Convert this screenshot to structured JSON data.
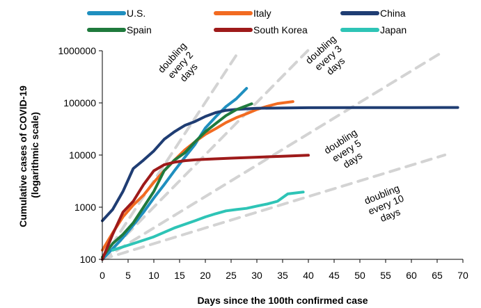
{
  "chart_data": {
    "type": "line",
    "xlabel": "Days since the 100th confirmed case",
    "ylabel_lines": [
      "Cumulative cases of COVID-19",
      "(logarithmic scale)"
    ],
    "y_scale": "log",
    "xlim": [
      0,
      70
    ],
    "ylim": [
      100,
      1000000
    ],
    "x_ticks": [
      0,
      5,
      10,
      15,
      20,
      25,
      30,
      35,
      40,
      45,
      50,
      55,
      60,
      65,
      70
    ],
    "x_tick_labels": [
      "0",
      "5",
      "10",
      "15",
      "20",
      "25",
      "30",
      "35",
      "40",
      "45",
      "50",
      "55",
      "60",
      "65",
      "70"
    ],
    "y_ticks": [
      100,
      1000,
      10000,
      100000,
      1000000
    ],
    "y_tick_labels": [
      "100",
      "1000",
      "10000",
      "100000",
      "1000000"
    ],
    "grid": false,
    "legend_position": "top",
    "series": [
      {
        "name": "U.S.",
        "color": "#1f8fbf",
        "x": [
          0,
          2,
          4,
          6,
          8,
          10,
          12,
          14,
          16,
          18,
          20,
          22,
          24,
          26,
          28
        ],
        "y": [
          100,
          160,
          260,
          450,
          800,
          1500,
          2700,
          5000,
          9000,
          16000,
          33000,
          54000,
          85000,
          120000,
          190000
        ]
      },
      {
        "name": "Italy",
        "color": "#f26b21",
        "x": [
          0,
          2,
          4,
          6,
          8,
          10,
          12,
          14,
          16,
          18,
          20,
          22,
          24,
          26,
          28,
          30,
          32,
          34,
          37
        ],
        "y": [
          150,
          320,
          650,
          1100,
          1700,
          3000,
          5000,
          8000,
          12500,
          18000,
          25000,
          32000,
          42000,
          52000,
          62000,
          75000,
          86000,
          97000,
          106000
        ]
      },
      {
        "name": "China",
        "color": "#1f3d73",
        "x": [
          0,
          2,
          4,
          6,
          8,
          10,
          12,
          14,
          16,
          18,
          20,
          22,
          24,
          26,
          28,
          30,
          40,
          50,
          60,
          69
        ],
        "y": [
          550,
          900,
          2000,
          5500,
          8000,
          12000,
          20000,
          28000,
          37000,
          44000,
          55000,
          65000,
          72000,
          75000,
          77000,
          79000,
          80800,
          81100,
          81400,
          81600
        ]
      },
      {
        "name": "Spain",
        "color": "#1f7a3d",
        "x": [
          0,
          2,
          4,
          6,
          8,
          10,
          12,
          14,
          16,
          18,
          20,
          22,
          24,
          26,
          29
        ],
        "y": [
          110,
          200,
          300,
          500,
          1000,
          2000,
          5000,
          8000,
          11000,
          18000,
          28000,
          40000,
          57000,
          74000,
          96000
        ]
      },
      {
        "name": "South Korea",
        "color": "#9e1a1a",
        "x": [
          0,
          2,
          4,
          6,
          8,
          10,
          12,
          14,
          16,
          18,
          20,
          25,
          30,
          35,
          40
        ],
        "y": [
          100,
          300,
          800,
          1300,
          2700,
          5000,
          6500,
          7300,
          7800,
          8100,
          8300,
          8700,
          9100,
          9500,
          9900
        ]
      },
      {
        "name": "Japan",
        "color": "#2ec4b6",
        "x": [
          2,
          6,
          10,
          14,
          18,
          20,
          22,
          24,
          26,
          28,
          30,
          32,
          34,
          36,
          39
        ],
        "y": [
          150,
          200,
          270,
          400,
          550,
          650,
          750,
          850,
          900,
          950,
          1050,
          1150,
          1300,
          1800,
          1950
        ]
      }
    ],
    "reference_lines": [
      {
        "label_lines": [
          "doubling",
          "every 2",
          "days"
        ],
        "doubling_days": 2,
        "x_end": 26.6
      },
      {
        "label_lines": [
          "doubling",
          "every 3",
          "days"
        ],
        "doubling_days": 3,
        "x_end": 39.9
      },
      {
        "label_lines": [
          "doubling",
          "every 5",
          "days"
        ],
        "doubling_days": 5,
        "x_end": 66.4
      },
      {
        "label_lines": [
          "doubling",
          "every 10",
          "days"
        ],
        "doubling_days": 10,
        "x_end": 66.5
      }
    ],
    "reference_style": {
      "color": "#d3d3d3",
      "dash": "14 10"
    }
  }
}
